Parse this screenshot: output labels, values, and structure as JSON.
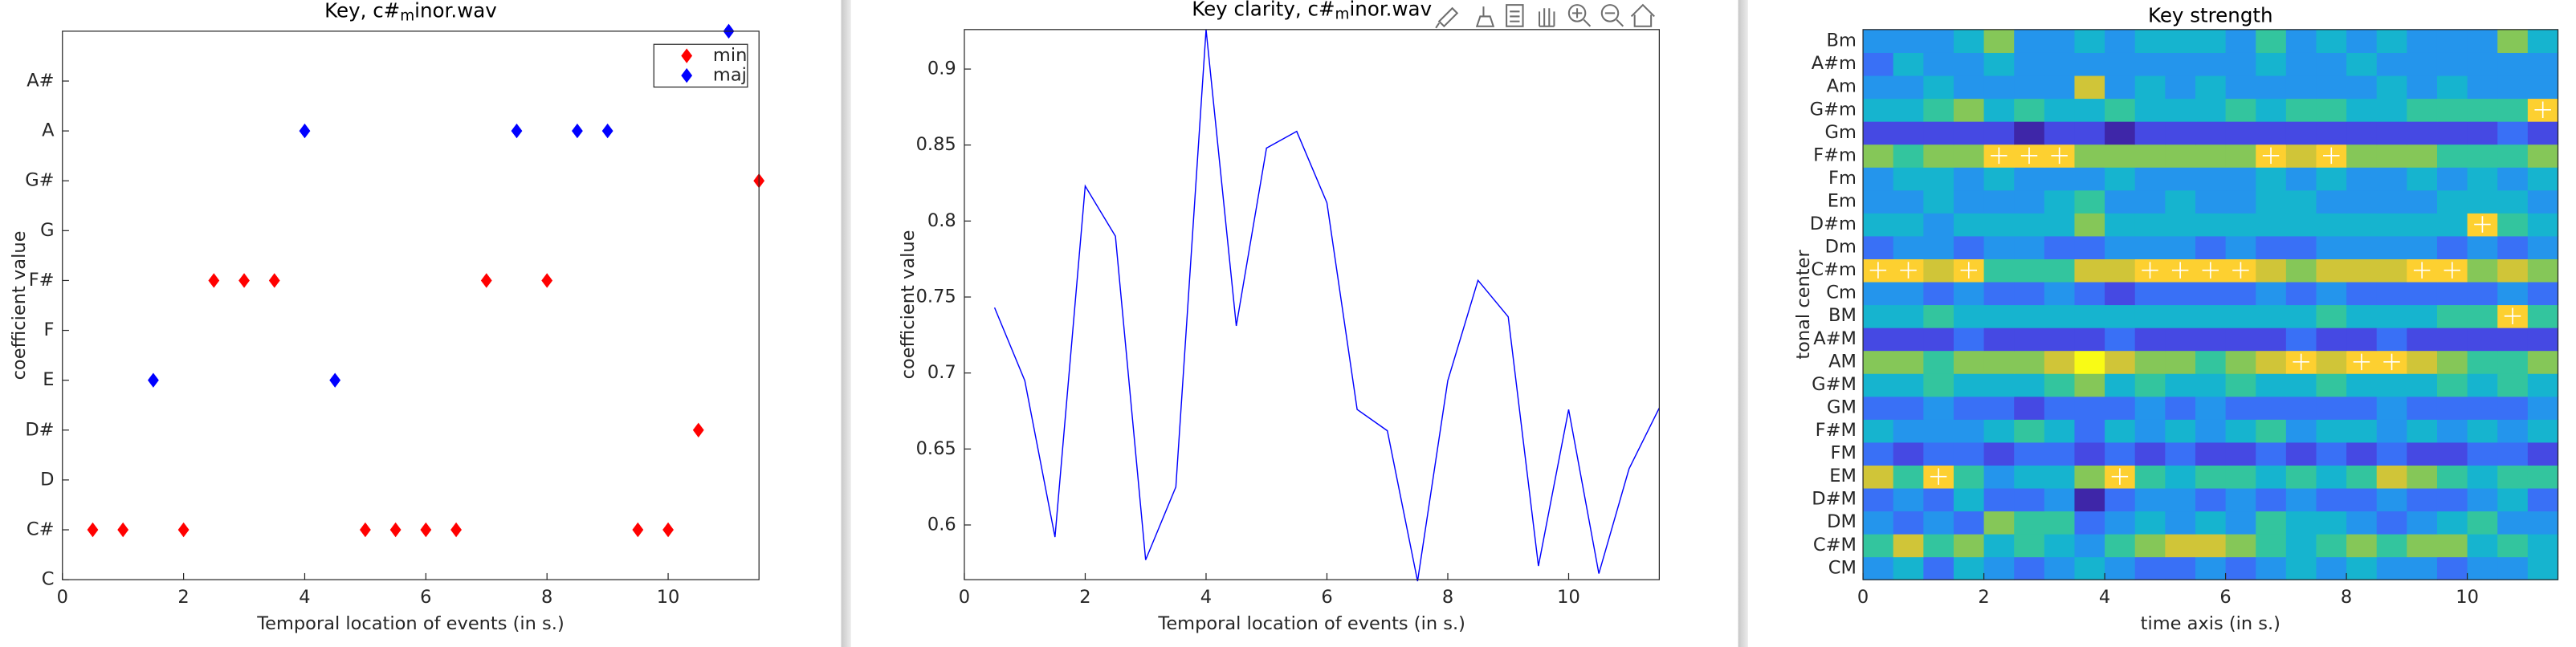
{
  "chart_data": [
    {
      "type": "scatter",
      "title": [
        "Key, c#",
        "m",
        "inor.wav"
      ],
      "xlabel": "Temporal location of events (in s.)",
      "ylabel": "coefficient value",
      "xlim": [
        0,
        11.5
      ],
      "xticks": [
        0,
        2,
        4,
        6,
        8,
        10
      ],
      "ylim": [
        1,
        12
      ],
      "yticks": [
        {
          "value": 1,
          "label": "C"
        },
        {
          "value": 2,
          "label": "C#"
        },
        {
          "value": 3,
          "label": "D"
        },
        {
          "value": 4,
          "label": "D#"
        },
        {
          "value": 5,
          "label": "E"
        },
        {
          "value": 6,
          "label": "F"
        },
        {
          "value": 7,
          "label": "F#"
        },
        {
          "value": 8,
          "label": "G"
        },
        {
          "value": 9,
          "label": "G#"
        },
        {
          "value": 10,
          "label": "A"
        },
        {
          "value": 11,
          "label": "A#"
        }
      ],
      "legend": "northeast",
      "series": [
        {
          "name": "min",
          "color": "#ff0000",
          "x": [
            0.5,
            1,
            2,
            2.5,
            3,
            3.5,
            5,
            5.5,
            6,
            6.5,
            7,
            8,
            9.5,
            10,
            10.5,
            11.5
          ],
          "values": [
            2,
            2,
            2,
            7,
            7,
            7,
            2,
            2,
            2,
            2,
            7,
            7,
            2,
            2,
            4,
            9
          ]
        },
        {
          "name": "maj",
          "color": "#0000ff",
          "x": [
            1.5,
            4,
            4.5,
            7.5,
            8.5,
            9,
            11
          ],
          "values": [
            5,
            10,
            5,
            10,
            10,
            10,
            12
          ]
        }
      ]
    },
    {
      "type": "line",
      "title": [
        "Key clarity, c#",
        "m",
        "inor.wav"
      ],
      "xlabel": "Temporal location of events (in s.)",
      "ylabel": "coefficient value",
      "xlim": [
        0,
        11.5
      ],
      "xticks": [
        0,
        2,
        4,
        6,
        8,
        10
      ],
      "ylim": [
        0.564,
        0.926
      ],
      "yticks": [
        0.6,
        0.65,
        0.7,
        0.75,
        0.8,
        0.85,
        0.9
      ],
      "color": "#0000ff",
      "x": [
        0.5,
        1,
        1.5,
        2,
        2.5,
        3,
        3.5,
        4,
        4.5,
        5,
        5.5,
        6,
        6.5,
        7,
        7.5,
        8,
        8.5,
        9,
        9.5,
        10,
        10.5,
        11,
        11.5
      ],
      "values": [
        0.743,
        0.695,
        0.592,
        0.823,
        0.79,
        0.577,
        0.625,
        0.926,
        0.731,
        0.848,
        0.859,
        0.812,
        0.676,
        0.662,
        0.563,
        0.695,
        0.761,
        0.737,
        0.573,
        0.676,
        0.568,
        0.637,
        0.677
      ]
    },
    {
      "type": "heatmap",
      "title": "Key strength",
      "xlabel": "time axis (in s.)",
      "ylabel": "tonal center",
      "xlim": [
        0,
        11.5
      ],
      "xticks": [
        0,
        2,
        4,
        6,
        8,
        10
      ],
      "x": [
        0.25,
        0.75,
        1.25,
        1.75,
        2.25,
        2.75,
        3.25,
        3.75,
        4.25,
        4.75,
        5.25,
        5.75,
        6.25,
        6.75,
        7.25,
        7.75,
        8.25,
        8.75,
        9.25,
        9.75,
        10.25,
        10.75,
        11.25
      ],
      "rows": [
        "CM",
        "C#M",
        "DM",
        "D#M",
        "EM",
        "FM",
        "F#M",
        "GM",
        "G#M",
        "AM",
        "A#M",
        "BM",
        "Cm",
        "C#m",
        "Dm",
        "D#m",
        "Em",
        "Fm",
        "F#m",
        "Gm",
        "G#m",
        "Am",
        "A#m",
        "Bm"
      ],
      "z": [
        [
          0.4,
          0.5,
          0.3,
          0.5,
          0.4,
          0.3,
          0.4,
          0.5,
          0.4,
          0.3,
          0.3,
          0.4,
          0.3,
          0.4,
          0.5,
          0.4,
          0.5,
          0.4,
          0.4,
          0.3,
          0.4,
          0.4,
          0.5
        ],
        [
          0.6,
          0.8,
          0.6,
          0.7,
          0.5,
          0.6,
          0.5,
          0.4,
          0.6,
          0.7,
          0.8,
          0.8,
          0.7,
          0.6,
          0.5,
          0.6,
          0.7,
          0.6,
          0.7,
          0.7,
          0.5,
          0.6,
          0.5
        ],
        [
          0.4,
          0.3,
          0.4,
          0.3,
          0.7,
          0.6,
          0.6,
          0.3,
          0.4,
          0.5,
          0.4,
          0.5,
          0.4,
          0.6,
          0.5,
          0.5,
          0.4,
          0.3,
          0.4,
          0.5,
          0.6,
          0.4,
          0.4
        ],
        [
          0.3,
          0.4,
          0.3,
          0.5,
          0.3,
          0.3,
          0.4,
          0.1,
          0.3,
          0.4,
          0.4,
          0.3,
          0.4,
          0.3,
          0.4,
          0.3,
          0.3,
          0.4,
          0.3,
          0.3,
          0.4,
          0.5,
          0.3
        ],
        [
          0.8,
          0.6,
          0.9,
          0.6,
          0.4,
          0.5,
          0.5,
          0.7,
          0.9,
          0.6,
          0.5,
          0.6,
          0.6,
          0.5,
          0.6,
          0.5,
          0.6,
          0.8,
          0.7,
          0.6,
          0.5,
          0.6,
          0.6
        ],
        [
          0.3,
          0.2,
          0.3,
          0.3,
          0.2,
          0.3,
          0.3,
          0.2,
          0.3,
          0.2,
          0.3,
          0.2,
          0.2,
          0.3,
          0.2,
          0.3,
          0.2,
          0.3,
          0.2,
          0.2,
          0.3,
          0.3,
          0.2
        ],
        [
          0.5,
          0.4,
          0.4,
          0.4,
          0.5,
          0.6,
          0.5,
          0.3,
          0.5,
          0.4,
          0.5,
          0.4,
          0.5,
          0.6,
          0.4,
          0.5,
          0.5,
          0.4,
          0.5,
          0.4,
          0.5,
          0.4,
          0.5
        ],
        [
          0.3,
          0.3,
          0.4,
          0.3,
          0.3,
          0.2,
          0.3,
          0.3,
          0.3,
          0.4,
          0.3,
          0.4,
          0.3,
          0.3,
          0.3,
          0.3,
          0.3,
          0.4,
          0.3,
          0.3,
          0.3,
          0.3,
          0.4
        ],
        [
          0.5,
          0.5,
          0.6,
          0.5,
          0.5,
          0.5,
          0.6,
          0.7,
          0.5,
          0.6,
          0.5,
          0.5,
          0.6,
          0.5,
          0.5,
          0.6,
          0.5,
          0.5,
          0.5,
          0.6,
          0.5,
          0.6,
          0.5
        ],
        [
          0.7,
          0.7,
          0.6,
          0.7,
          0.7,
          0.7,
          0.8,
          1.0,
          0.8,
          0.7,
          0.7,
          0.6,
          0.7,
          0.8,
          0.9,
          0.8,
          0.9,
          0.9,
          0.8,
          0.7,
          0.6,
          0.6,
          0.7
        ],
        [
          0.2,
          0.2,
          0.2,
          0.3,
          0.2,
          0.2,
          0.2,
          0.2,
          0.3,
          0.2,
          0.2,
          0.2,
          0.2,
          0.2,
          0.3,
          0.2,
          0.2,
          0.3,
          0.2,
          0.2,
          0.2,
          0.2,
          0.2
        ],
        [
          0.5,
          0.5,
          0.6,
          0.5,
          0.5,
          0.5,
          0.5,
          0.5,
          0.5,
          0.5,
          0.5,
          0.5,
          0.5,
          0.5,
          0.5,
          0.6,
          0.5,
          0.5,
          0.5,
          0.6,
          0.6,
          0.9,
          0.6
        ],
        [
          0.4,
          0.4,
          0.3,
          0.4,
          0.3,
          0.3,
          0.4,
          0.3,
          0.2,
          0.3,
          0.3,
          0.3,
          0.3,
          0.4,
          0.3,
          0.4,
          0.3,
          0.3,
          0.3,
          0.3,
          0.3,
          0.4,
          0.3
        ],
        [
          0.9,
          0.9,
          0.8,
          0.9,
          0.6,
          0.6,
          0.6,
          0.8,
          0.8,
          0.9,
          0.9,
          0.9,
          0.9,
          0.8,
          0.7,
          0.8,
          0.8,
          0.8,
          0.9,
          0.9,
          0.7,
          0.8,
          0.7
        ],
        [
          0.3,
          0.4,
          0.4,
          0.3,
          0.4,
          0.4,
          0.3,
          0.3,
          0.4,
          0.4,
          0.4,
          0.3,
          0.4,
          0.3,
          0.3,
          0.4,
          0.4,
          0.4,
          0.4,
          0.3,
          0.4,
          0.3,
          0.4
        ],
        [
          0.5,
          0.5,
          0.4,
          0.5,
          0.5,
          0.5,
          0.5,
          0.7,
          0.5,
          0.5,
          0.5,
          0.5,
          0.5,
          0.5,
          0.5,
          0.5,
          0.5,
          0.5,
          0.5,
          0.5,
          0.9,
          0.6,
          0.5
        ],
        [
          0.4,
          0.4,
          0.5,
          0.4,
          0.4,
          0.4,
          0.5,
          0.6,
          0.4,
          0.4,
          0.5,
          0.4,
          0.4,
          0.5,
          0.5,
          0.4,
          0.4,
          0.4,
          0.4,
          0.5,
          0.5,
          0.5,
          0.4
        ],
        [
          0.4,
          0.5,
          0.5,
          0.4,
          0.5,
          0.4,
          0.4,
          0.4,
          0.5,
          0.4,
          0.4,
          0.4,
          0.4,
          0.5,
          0.4,
          0.5,
          0.4,
          0.4,
          0.5,
          0.4,
          0.5,
          0.4,
          0.5
        ],
        [
          0.7,
          0.6,
          0.7,
          0.7,
          0.9,
          0.9,
          0.9,
          0.7,
          0.7,
          0.7,
          0.7,
          0.7,
          0.7,
          0.9,
          0.8,
          0.9,
          0.7,
          0.7,
          0.7,
          0.6,
          0.6,
          0.6,
          0.7
        ],
        [
          0.2,
          0.2,
          0.2,
          0.2,
          0.2,
          0.1,
          0.2,
          0.2,
          0.1,
          0.2,
          0.2,
          0.2,
          0.2,
          0.2,
          0.2,
          0.2,
          0.2,
          0.2,
          0.2,
          0.2,
          0.2,
          0.3,
          0.2
        ],
        [
          0.5,
          0.5,
          0.6,
          0.7,
          0.5,
          0.6,
          0.5,
          0.5,
          0.6,
          0.5,
          0.5,
          0.5,
          0.6,
          0.5,
          0.6,
          0.6,
          0.5,
          0.5,
          0.6,
          0.6,
          0.6,
          0.6,
          0.9
        ],
        [
          0.4,
          0.4,
          0.5,
          0.4,
          0.4,
          0.4,
          0.4,
          0.8,
          0.4,
          0.5,
          0.4,
          0.5,
          0.4,
          0.4,
          0.4,
          0.4,
          0.4,
          0.5,
          0.4,
          0.5,
          0.4,
          0.4,
          0.4
        ],
        [
          0.3,
          0.5,
          0.4,
          0.4,
          0.5,
          0.4,
          0.4,
          0.4,
          0.4,
          0.4,
          0.4,
          0.4,
          0.4,
          0.5,
          0.4,
          0.4,
          0.5,
          0.4,
          0.4,
          0.4,
          0.4,
          0.4,
          0.4
        ],
        [
          0.4,
          0.4,
          0.4,
          0.5,
          0.7,
          0.4,
          0.4,
          0.5,
          0.4,
          0.5,
          0.5,
          0.5,
          0.4,
          0.6,
          0.4,
          0.5,
          0.4,
          0.5,
          0.4,
          0.4,
          0.4,
          0.7,
          0.5
        ]
      ],
      "markers": [
        13,
        13,
        4,
        13,
        18,
        18,
        18,
        null,
        4,
        13,
        13,
        13,
        13,
        18,
        9,
        18,
        9,
        9,
        13,
        13,
        15,
        11,
        20
      ]
    }
  ]
}
